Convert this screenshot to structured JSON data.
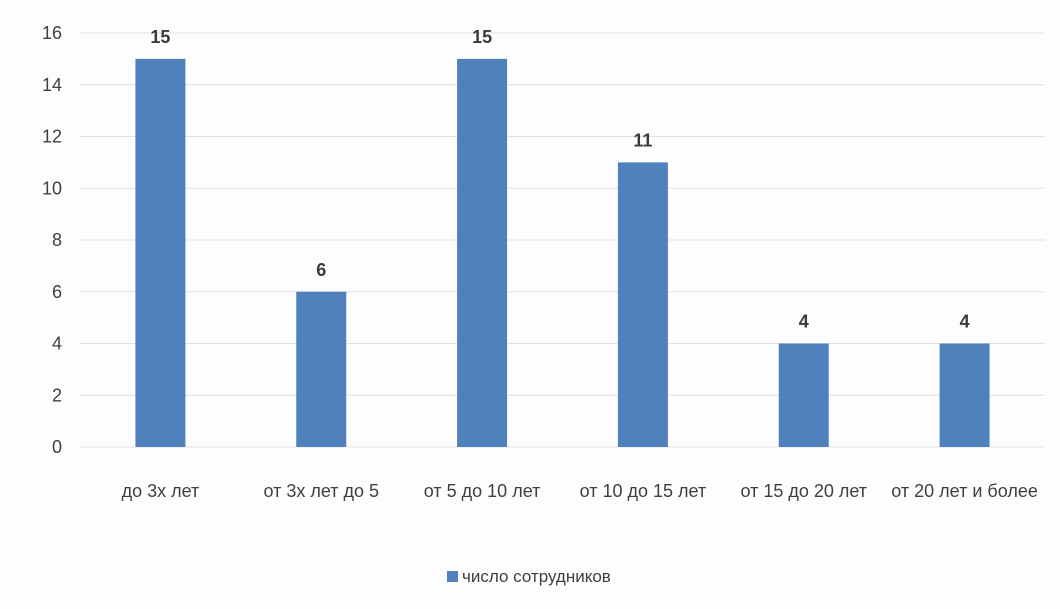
{
  "chart_data": {
    "type": "bar",
    "categories": [
      "до 3х лет",
      "от 3х лет до 5",
      "от 5 до 10 лет",
      "от 10 до 15 лет",
      "от 15 до 20 лет",
      "от 20 лет и более"
    ],
    "series": [
      {
        "name": "число сотрудников",
        "values": [
          15,
          6,
          15,
          11,
          4,
          4
        ]
      }
    ],
    "data_labels": [
      "15",
      "6",
      "15",
      "11",
      "4",
      "4"
    ],
    "title": "",
    "xlabel": "",
    "ylabel": "",
    "ylim": [
      0,
      16
    ],
    "yticks": [
      0,
      2,
      4,
      6,
      8,
      10,
      12,
      14,
      16
    ],
    "ytick_labels": [
      "0",
      "2",
      "4",
      "6",
      "8",
      "10",
      "12",
      "14",
      "16"
    ],
    "grid": true,
    "legend_position": "bottom",
    "colors": {
      "bar": "#4f81bd",
      "grid": "#e2e2e2",
      "text": "#3f3f3f"
    }
  }
}
